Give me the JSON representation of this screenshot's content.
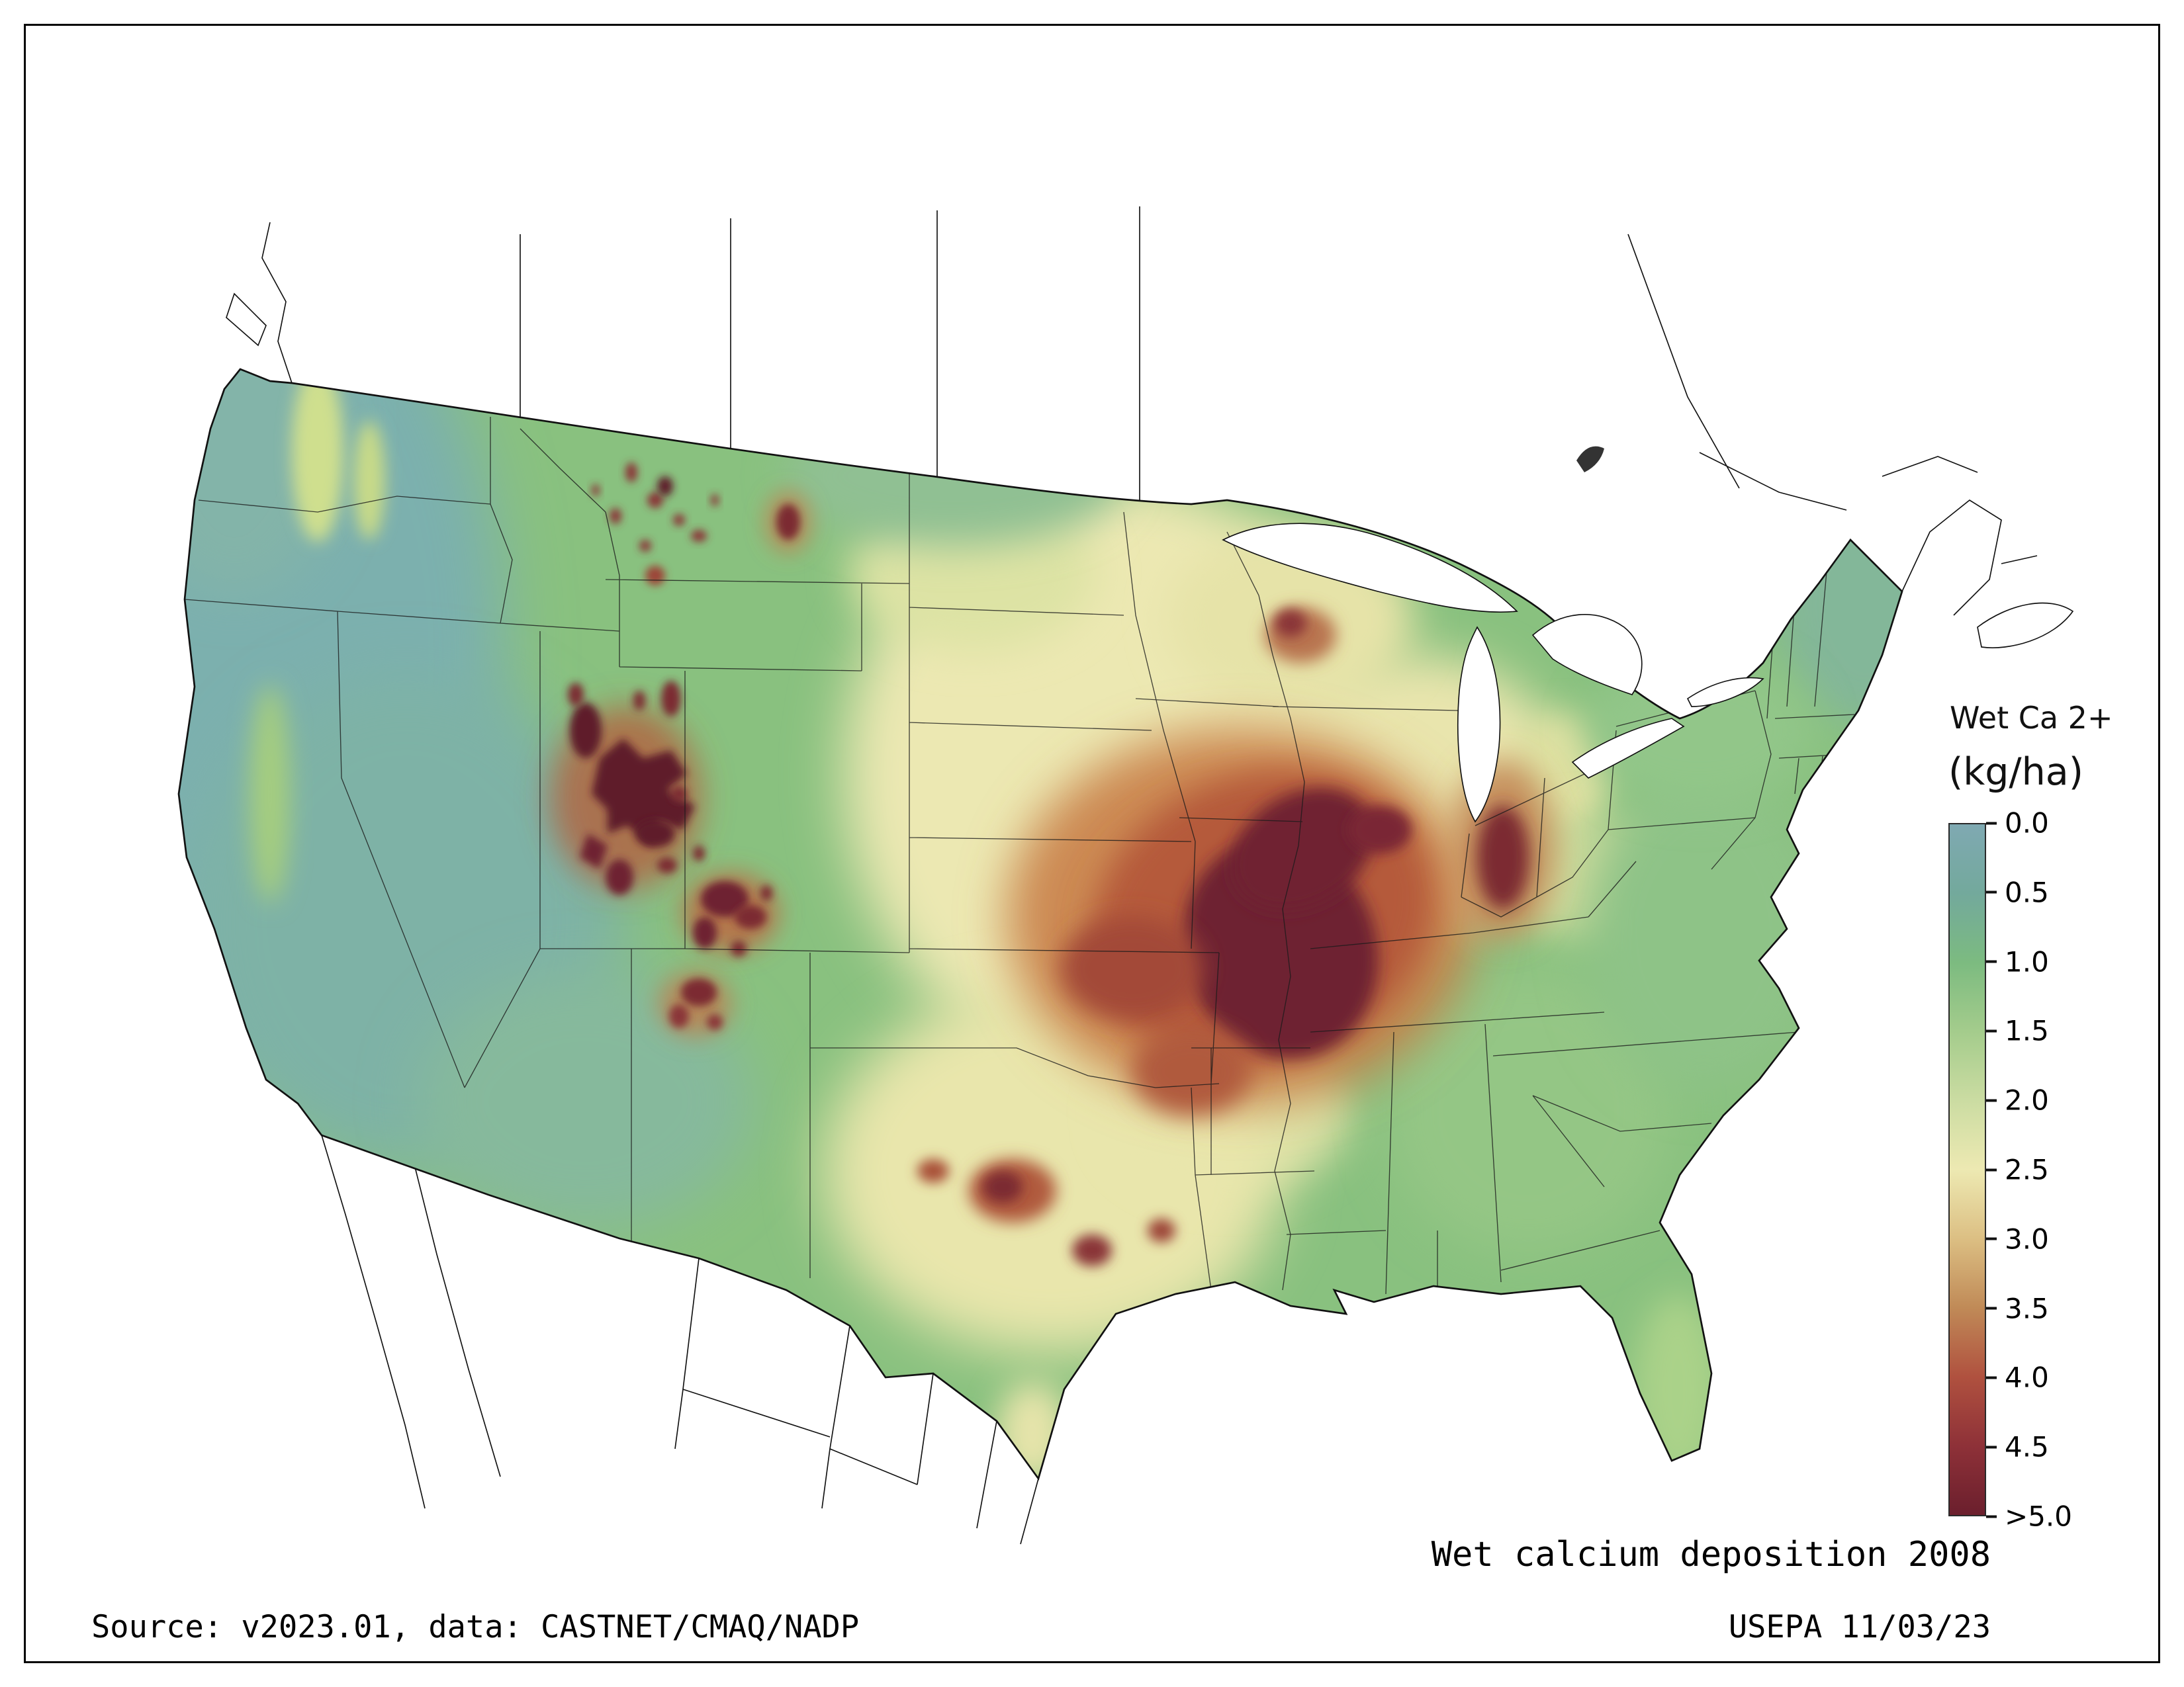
{
  "figure": {
    "title": "Wet calcium deposition 2008",
    "source": "Source: v2023.01, data: CASTNET/CMAQ/NADP",
    "credit": "USEPA 11/03/23"
  },
  "legend": {
    "title": "Wet Ca 2+",
    "units": "(kg/ha)",
    "ticks": [
      "0.0",
      "0.5",
      "1.0",
      "1.5",
      "2.0",
      "2.5",
      "3.0",
      "3.5",
      "4.0",
      "4.5",
      ">5.0"
    ],
    "gradient_stops": [
      "#7fa9b2",
      "#73a99c",
      "#7cbb80",
      "#a4cc8c",
      "#cbdca2",
      "#ede9b2",
      "#dcbf83",
      "#c08a57",
      "#b0513f",
      "#8e3138",
      "#6b1f2d"
    ]
  },
  "chart_data": {
    "type": "heatmap",
    "title": "Wet calcium deposition 2008",
    "colorbar_label": "Wet Ca 2+ (kg/ha)",
    "scale_min": 0.0,
    "scale_max_label": ">5.0",
    "tick_step": 0.5,
    "legend_position": "right"
  }
}
